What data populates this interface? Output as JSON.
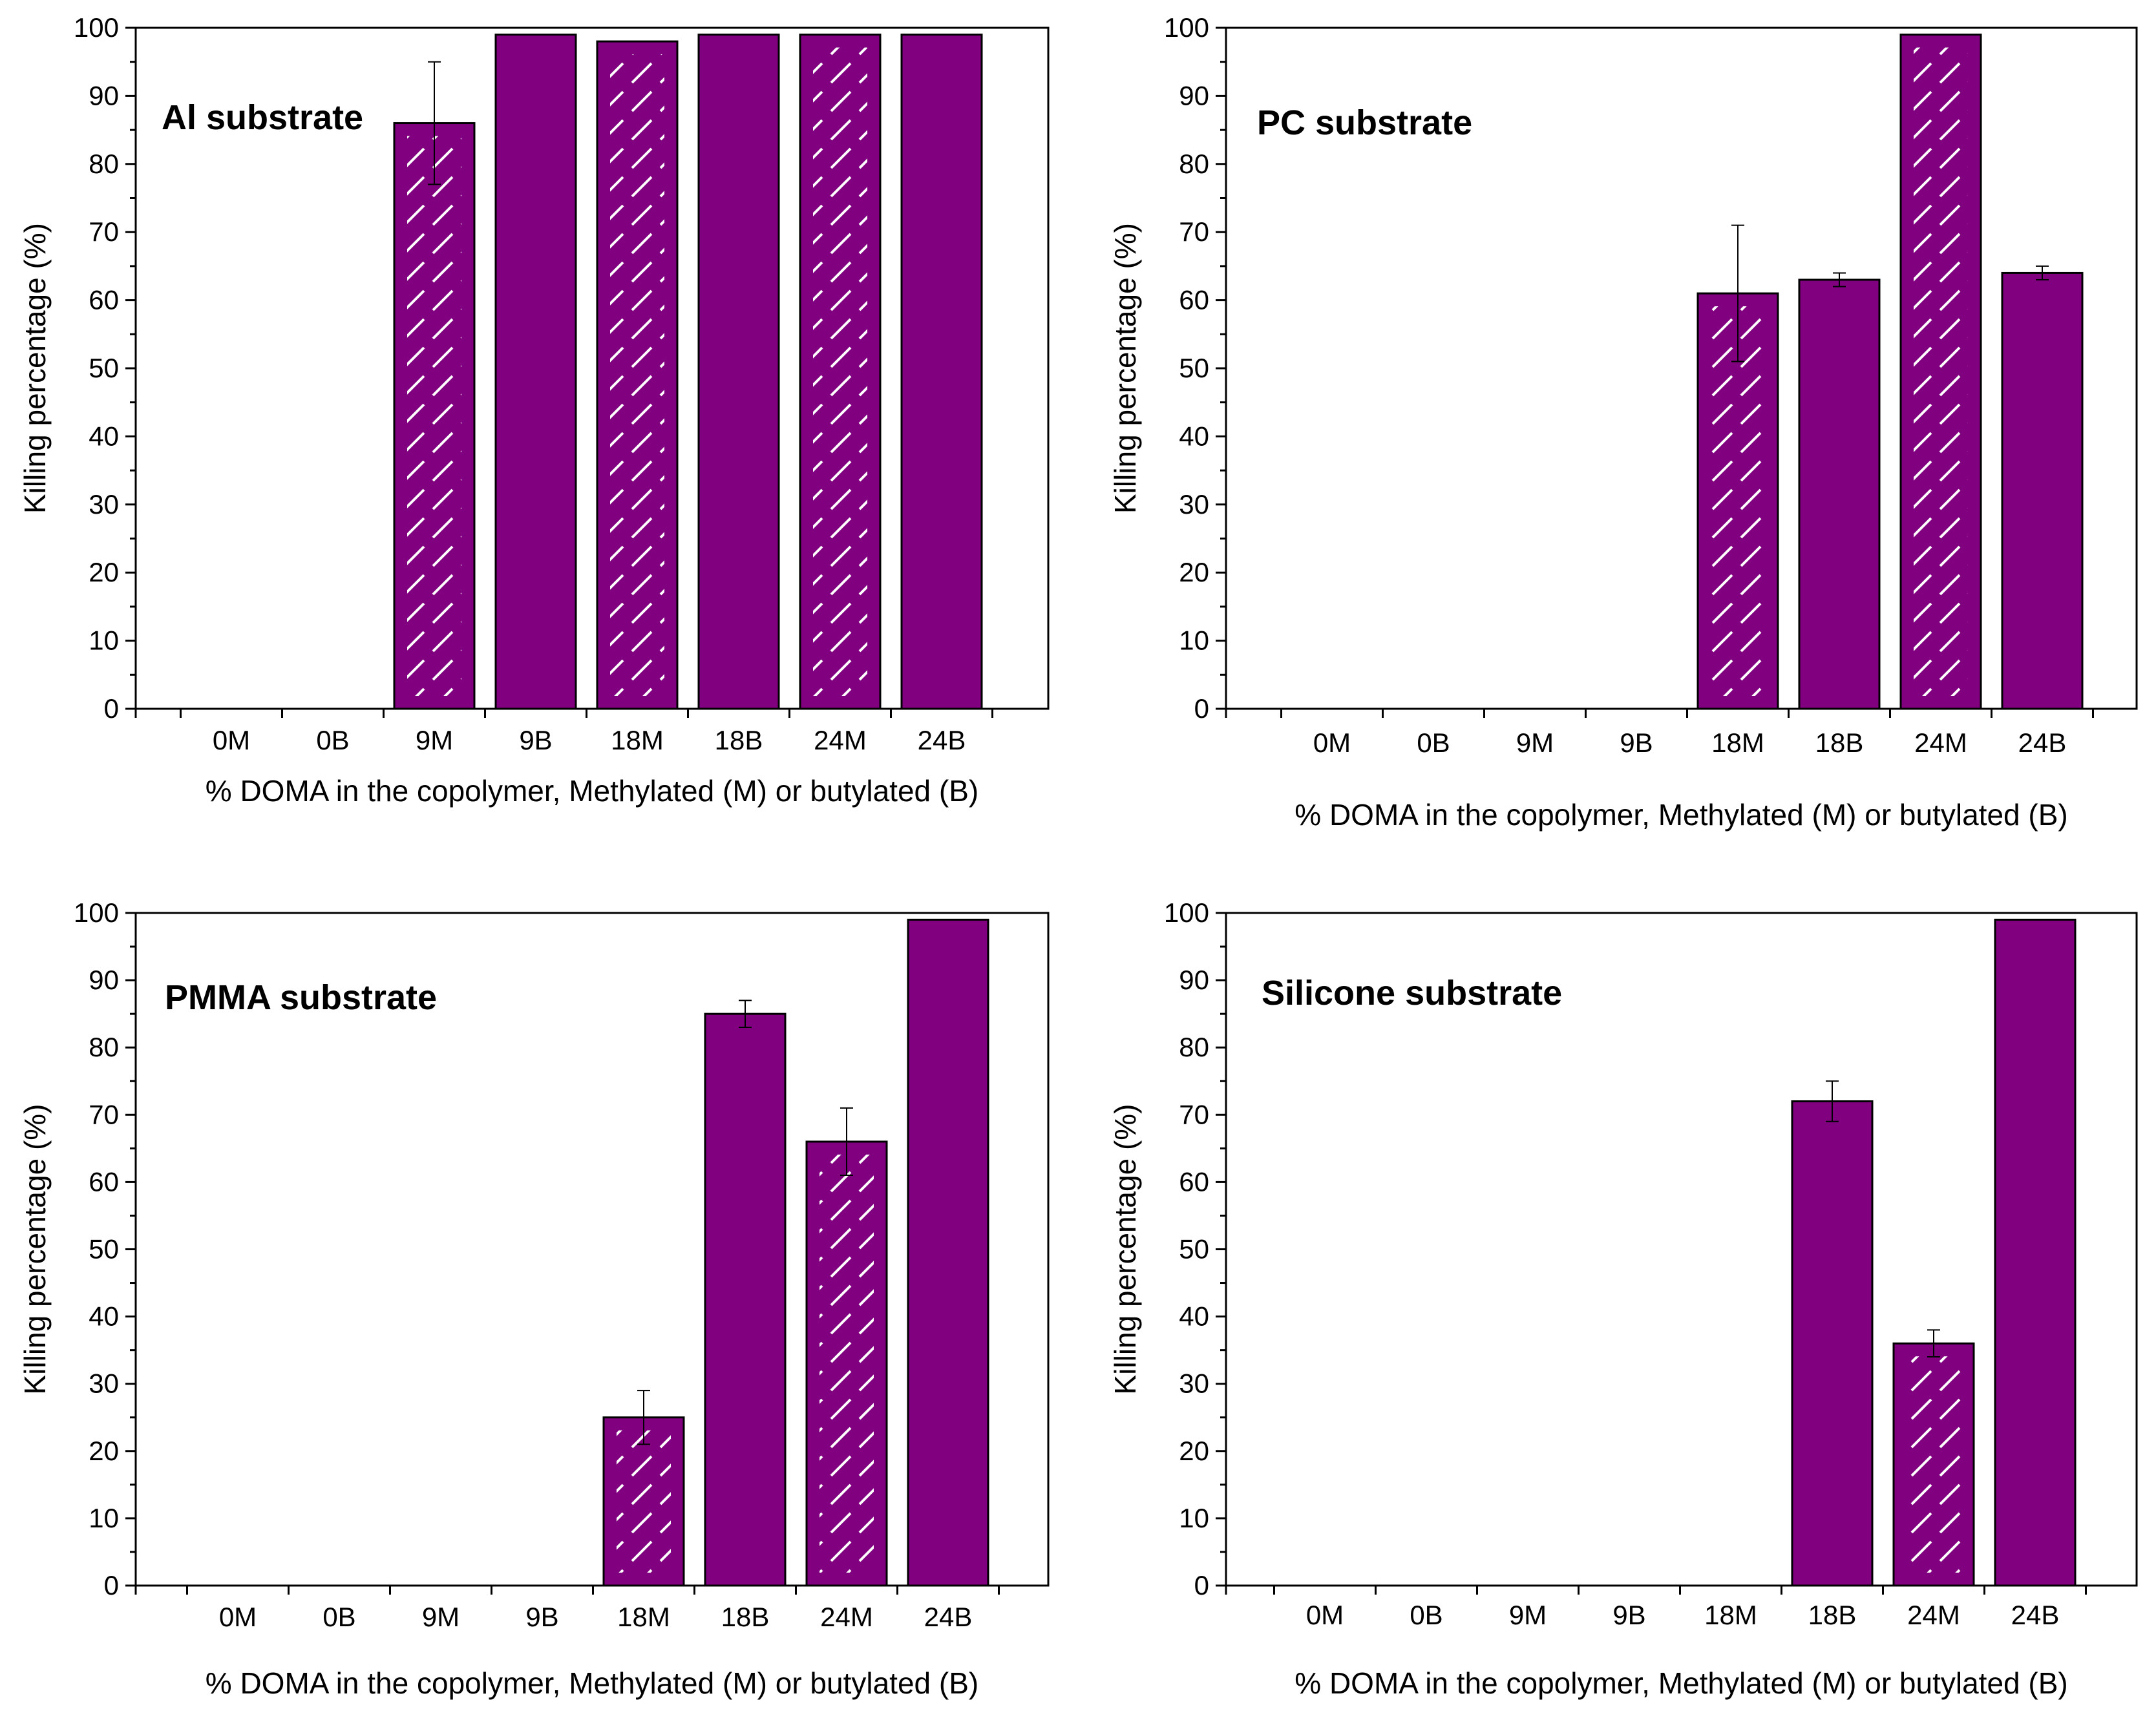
{
  "colors": {
    "bar": "#800080",
    "hatch": "#ffffff",
    "axis": "#000000",
    "background": "#ffffff"
  },
  "chart_data": [
    {
      "type": "bar",
      "title": "Al substrate",
      "xlabel": "% DOMA in the copolymer, Methylated (M) or butylated (B)",
      "ylabel": "Killing percentage (%)",
      "ylim": [
        0,
        100
      ],
      "yticks": [
        "0",
        "10",
        "20",
        "30",
        "40",
        "50",
        "60",
        "70",
        "80",
        "90",
        "100"
      ],
      "categories": [
        "0M",
        "0B",
        "9M",
        "9B",
        "18M",
        "18B",
        "24M",
        "24B"
      ],
      "values": [
        0,
        0,
        86,
        99,
        98,
        99,
        99,
        99
      ],
      "errors": [
        0,
        0,
        9,
        0,
        0,
        0,
        0,
        0
      ],
      "hatched": [
        true,
        false,
        true,
        false,
        true,
        false,
        true,
        false
      ]
    },
    {
      "type": "bar",
      "title": "PC substrate",
      "xlabel": "% DOMA in the copolymer, Methylated (M) or butylated (B)",
      "ylabel": "Killing percentage (%)",
      "ylim": [
        0,
        100
      ],
      "yticks": [
        "0",
        "10",
        "20",
        "30",
        "40",
        "50",
        "60",
        "70",
        "80",
        "90",
        "100"
      ],
      "categories": [
        "0M",
        "0B",
        "9M",
        "9B",
        "18M",
        "18B",
        "24M",
        "24B"
      ],
      "values": [
        0,
        0,
        0,
        0,
        61,
        63,
        99,
        64
      ],
      "errors": [
        0,
        0,
        0,
        0,
        10,
        1,
        0,
        1
      ],
      "hatched": [
        true,
        false,
        true,
        false,
        true,
        false,
        true,
        false
      ]
    },
    {
      "type": "bar",
      "title": "PMMA substrate",
      "xlabel": "% DOMA in the copolymer, Methylated (M) or butylated (B)",
      "ylabel": "Killing percentage (%)",
      "ylim": [
        0,
        100
      ],
      "yticks": [
        "0",
        "10",
        "20",
        "30",
        "40",
        "50",
        "60",
        "70",
        "80",
        "90",
        "100"
      ],
      "categories": [
        "0M",
        "0B",
        "9M",
        "9B",
        "18M",
        "18B",
        "24M",
        "24B"
      ],
      "values": [
        0,
        0,
        0,
        0,
        25,
        85,
        66,
        99
      ],
      "errors": [
        0,
        0,
        0,
        0,
        4,
        2,
        5,
        0
      ],
      "hatched": [
        true,
        false,
        true,
        false,
        true,
        false,
        true,
        false
      ]
    },
    {
      "type": "bar",
      "title": "Silicone substrate",
      "xlabel": "% DOMA in the copolymer, Methylated (M) or butylated (B)",
      "ylabel": "Killing percentage (%)",
      "ylim": [
        0,
        100
      ],
      "yticks": [
        "0",
        "10",
        "20",
        "30",
        "40",
        "50",
        "60",
        "70",
        "80",
        "90",
        "100"
      ],
      "categories": [
        "0M",
        "0B",
        "9M",
        "9B",
        "18M",
        "18B",
        "24M",
        "24B"
      ],
      "values": [
        0,
        0,
        0,
        0,
        0,
        72,
        36,
        99
      ],
      "errors": [
        0,
        0,
        0,
        0,
        0,
        3,
        2,
        0
      ],
      "hatched": [
        true,
        false,
        true,
        false,
        true,
        false,
        true,
        false
      ]
    }
  ]
}
